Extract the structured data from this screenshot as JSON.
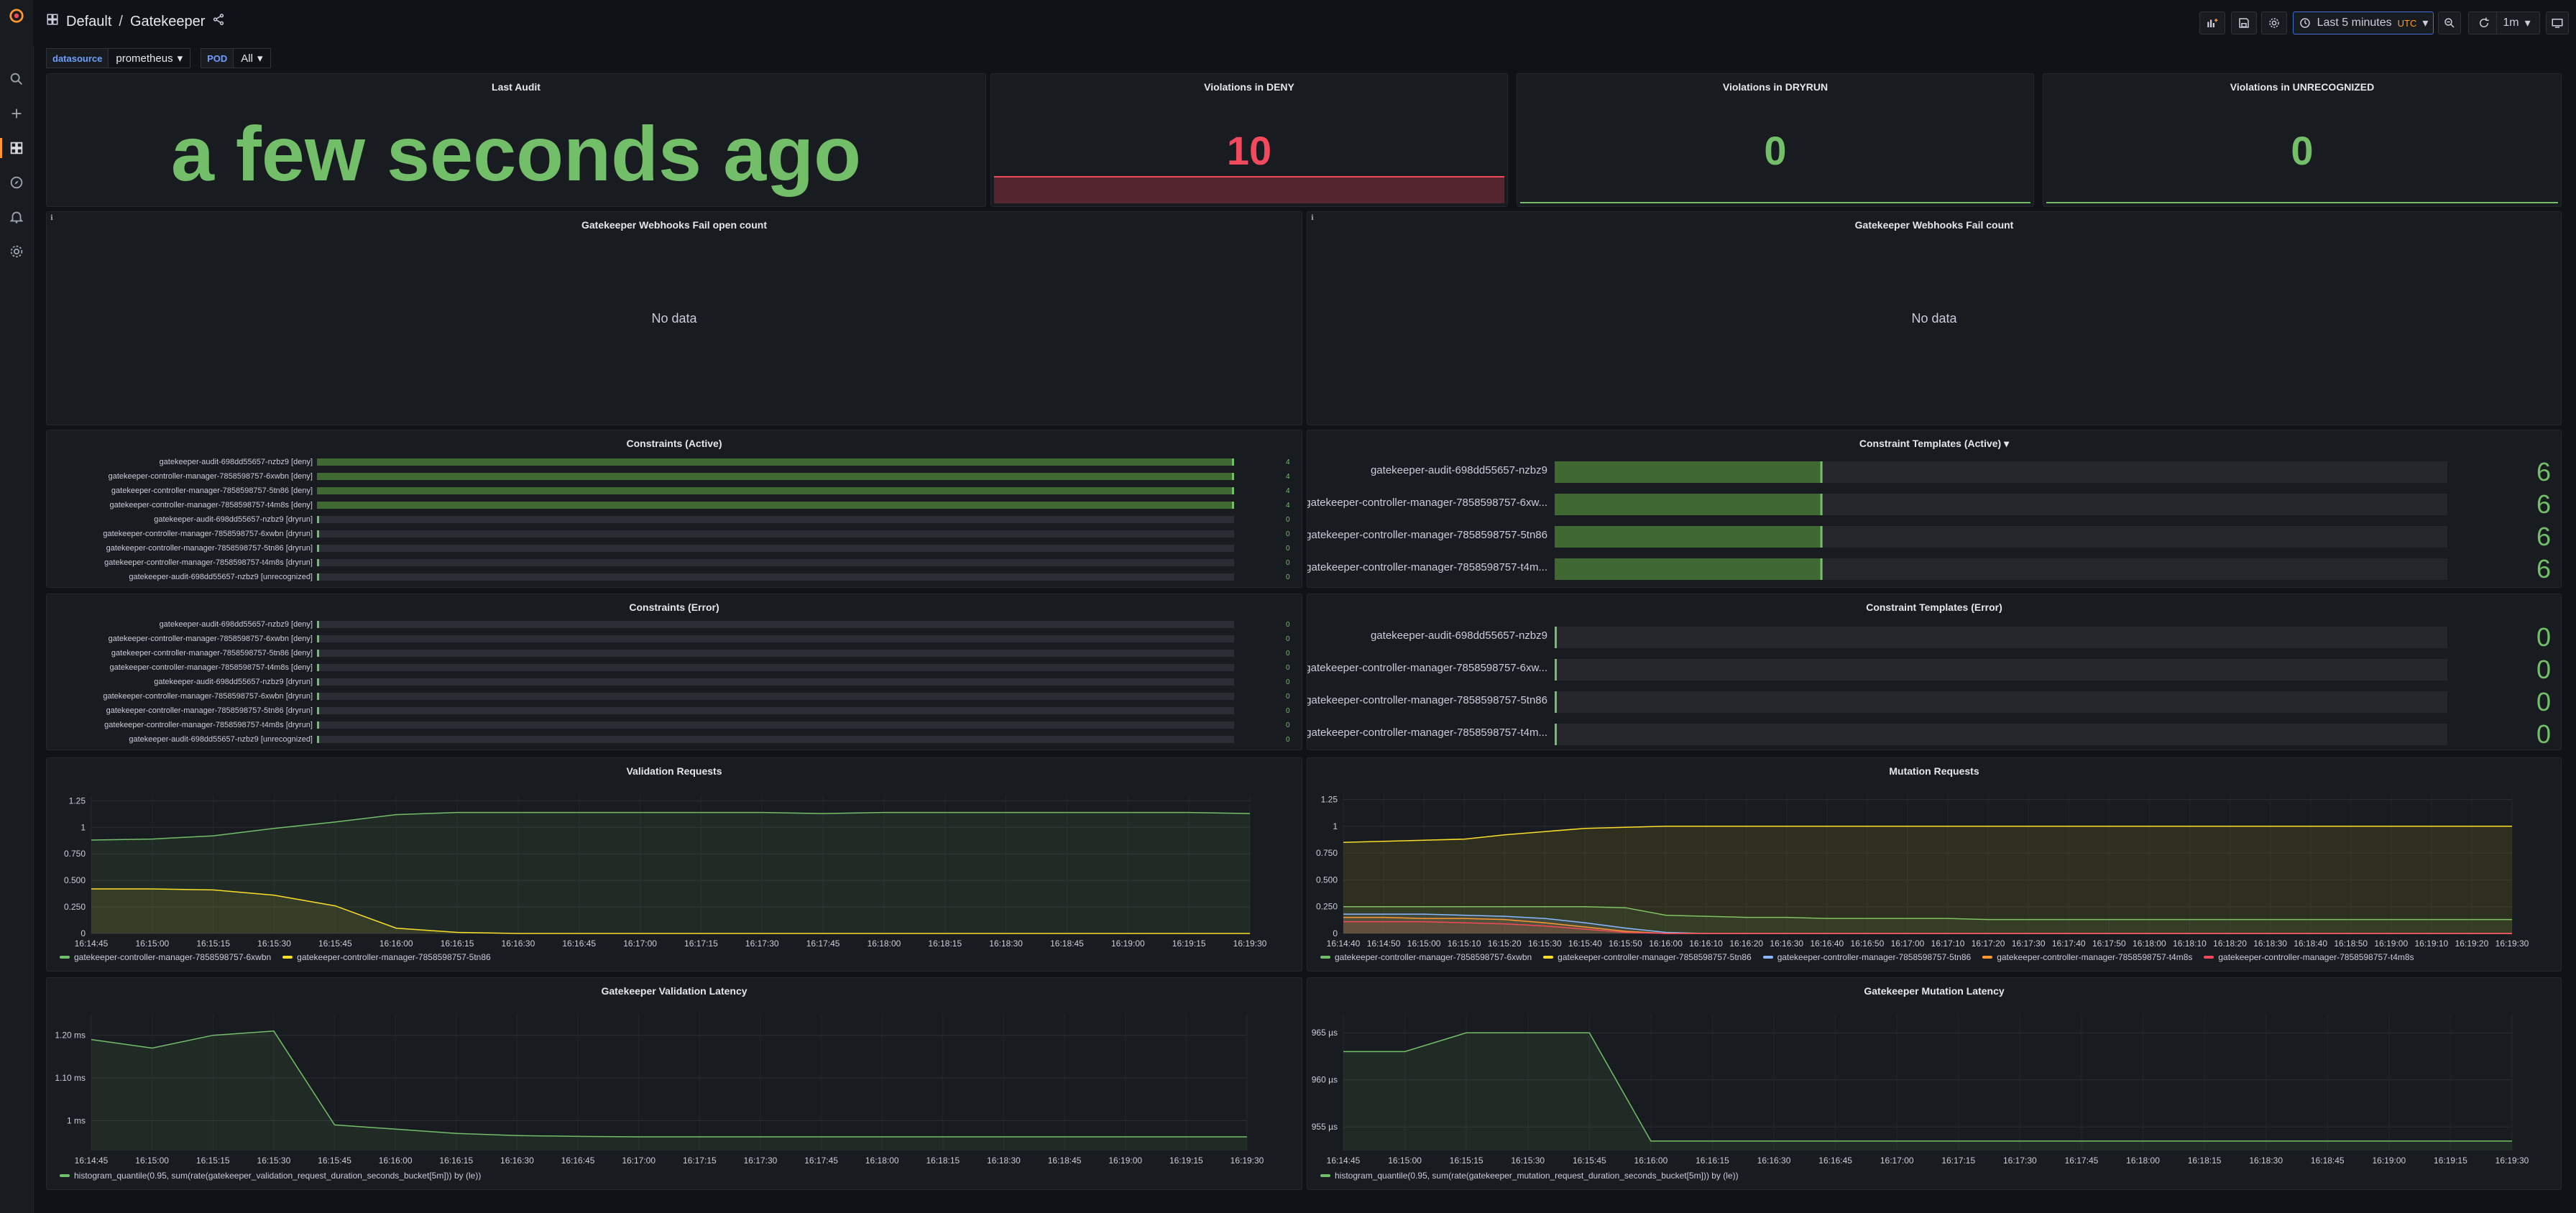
{
  "app": {
    "folder": "Default",
    "title": "Gatekeeper"
  },
  "toolbar": {
    "time_range": "Last 5 minutes",
    "timezone": "UTC",
    "refresh_interval": "1m"
  },
  "variables": [
    {
      "label": "datasource",
      "value": "prometheus"
    },
    {
      "label": "POD",
      "value": "All"
    }
  ],
  "colors": {
    "green": "#73bf69",
    "red": "#f2495c",
    "yellow": "#fade2a",
    "blue": "#8ab8ff",
    "orange": "#ff9830",
    "panel": "#181b1f",
    "text": "#ccccdc",
    "accent": "#ff9830"
  },
  "panels": {
    "last_audit": {
      "title": "Last Audit",
      "value": "a few seconds ago"
    },
    "deny": {
      "title": "Violations in DENY",
      "value": "10",
      "level": 0.9
    },
    "dryrun": {
      "title": "Violations in DRYRUN",
      "value": "0"
    },
    "unrecognized": {
      "title": "Violations in UNRECOGNIZED",
      "value": "0"
    },
    "webhook_failopen": {
      "title": "Gatekeeper Webhooks Fail open count",
      "nodata": "No data"
    },
    "webhook_fail": {
      "title": "Gatekeeper Webhooks Fail count",
      "nodata": "No data"
    },
    "constraints_active": {
      "title": "Constraints (Active)"
    },
    "templates_active": {
      "title": "Constraint Templates (Active)"
    },
    "constraints_error": {
      "title": "Constraints (Error)"
    },
    "templates_error": {
      "title": "Constraint Templates (Error)"
    },
    "validation": {
      "title": "Validation Requests"
    },
    "mutation": {
      "title": "Mutation Requests"
    },
    "val_latency": {
      "title": "Gatekeeper Validation Latency"
    },
    "mut_latency": {
      "title": "Gatekeeper Mutation Latency"
    }
  },
  "chart_data": [
    {
      "id": "constraints_active",
      "type": "bar",
      "orientation": "horizontal",
      "max": 4,
      "categories": [
        "gatekeeper-audit-698dd55657-nzbz9 [deny]",
        "gatekeeper-controller-manager-7858598757-6xwbn [deny]",
        "gatekeeper-controller-manager-7858598757-5tn86 [deny]",
        "gatekeeper-controller-manager-7858598757-t4m8s [deny]",
        "gatekeeper-audit-698dd55657-nzbz9 [dryrun]",
        "gatekeeper-controller-manager-7858598757-6xwbn [dryrun]",
        "gatekeeper-controller-manager-7858598757-5tn86 [dryrun]",
        "gatekeeper-controller-manager-7858598757-t4m8s [dryrun]",
        "gatekeeper-audit-698dd55657-nzbz9 [unrecognized]"
      ],
      "values": [
        4,
        4,
        4,
        4,
        0,
        0,
        0,
        0,
        0
      ]
    },
    {
      "id": "templates_active",
      "type": "bar",
      "orientation": "horizontal",
      "max": 20,
      "categories": [
        "gatekeeper-audit-698dd55657-nzbz9",
        "gatekeeper-controller-manager-7858598757-6xw...",
        "gatekeeper-controller-manager-7858598757-5tn86",
        "gatekeeper-controller-manager-7858598757-t4m..."
      ],
      "values": [
        6,
        6,
        6,
        6
      ]
    },
    {
      "id": "constraints_error",
      "type": "bar",
      "orientation": "horizontal",
      "max": 4,
      "categories": [
        "gatekeeper-audit-698dd55657-nzbz9 [deny]",
        "gatekeeper-controller-manager-7858598757-6xwbn [deny]",
        "gatekeeper-controller-manager-7858598757-5tn86 [deny]",
        "gatekeeper-controller-manager-7858598757-t4m8s [deny]",
        "gatekeeper-audit-698dd55657-nzbz9 [dryrun]",
        "gatekeeper-controller-manager-7858598757-6xwbn [dryrun]",
        "gatekeeper-controller-manager-7858598757-5tn86 [dryrun]",
        "gatekeeper-controller-manager-7858598757-t4m8s [dryrun]",
        "gatekeeper-audit-698dd55657-nzbz9 [unrecognized]"
      ],
      "values": [
        0,
        0,
        0,
        0,
        0,
        0,
        0,
        0,
        0
      ]
    },
    {
      "id": "templates_error",
      "type": "bar",
      "orientation": "horizontal",
      "max": 20,
      "categories": [
        "gatekeeper-audit-698dd55657-nzbz9",
        "gatekeeper-controller-manager-7858598757-6xw...",
        "gatekeeper-controller-manager-7858598757-5tn86",
        "gatekeeper-controller-manager-7858598757-t4m..."
      ],
      "values": [
        0,
        0,
        0,
        0
      ]
    },
    {
      "id": "validation",
      "type": "area",
      "x": [
        "16:14:45",
        "16:15:00",
        "16:15:15",
        "16:15:30",
        "16:15:45",
        "16:16:00",
        "16:16:15",
        "16:16:30",
        "16:16:45",
        "16:17:00",
        "16:17:15",
        "16:17:30",
        "16:17:45",
        "16:18:00",
        "16:18:15",
        "16:18:30",
        "16:18:45",
        "16:19:00",
        "16:19:15",
        "16:19:30"
      ],
      "yticks": [
        "0",
        "0.250",
        "0.500",
        "0.750",
        "1",
        "1.25"
      ],
      "ylim": [
        0,
        1.3
      ],
      "series": [
        {
          "name": "gatekeeper-controller-manager-7858598757-6xwbn",
          "color": "#73bf69",
          "values": [
            0.88,
            0.89,
            0.92,
            0.99,
            1.05,
            1.12,
            1.14,
            1.14,
            1.14,
            1.14,
            1.14,
            1.14,
            1.13,
            1.14,
            1.14,
            1.14,
            1.14,
            1.14,
            1.14,
            1.13
          ]
        },
        {
          "name": "gatekeeper-controller-manager-7858598757-5tn86",
          "color": "#fade2a",
          "values": [
            0.42,
            0.42,
            0.41,
            0.36,
            0.26,
            0.05,
            0.01,
            0.0,
            0.0,
            0.0,
            0.0,
            0.0,
            0.0,
            0.0,
            0.0,
            0.0,
            0.0,
            0.0,
            0.0,
            0.0
          ]
        }
      ]
    },
    {
      "id": "mutation",
      "type": "area",
      "x": [
        "16:14:40",
        "16:14:50",
        "16:15:00",
        "16:15:10",
        "16:15:20",
        "16:15:30",
        "16:15:40",
        "16:15:50",
        "16:16:00",
        "16:16:10",
        "16:16:20",
        "16:16:30",
        "16:16:40",
        "16:16:50",
        "16:17:00",
        "16:17:10",
        "16:17:20",
        "16:17:30",
        "16:17:40",
        "16:17:50",
        "16:18:00",
        "16:18:10",
        "16:18:20",
        "16:18:30",
        "16:18:40",
        "16:18:50",
        "16:19:00",
        "16:19:10",
        "16:19:20",
        "16:19:30"
      ],
      "yticks": [
        "0",
        "0.250",
        "0.500",
        "0.750",
        "1",
        "1.25"
      ],
      "ylim": [
        0,
        1.3
      ],
      "series": [
        {
          "name": "gatekeeper-controller-manager-7858598757-6xwbn",
          "color": "#73bf69",
          "values": [
            0.25,
            0.25,
            0.25,
            0.25,
            0.25,
            0.25,
            0.25,
            0.24,
            0.17,
            0.16,
            0.15,
            0.15,
            0.14,
            0.14,
            0.14,
            0.14,
            0.13,
            0.13,
            0.13,
            0.13,
            0.13,
            0.13,
            0.13,
            0.13,
            0.13,
            0.13,
            0.13,
            0.13,
            0.13,
            0.13
          ]
        },
        {
          "name": "gatekeeper-controller-manager-7858598757-5tn86",
          "color": "#fade2a",
          "values": [
            0.85,
            0.86,
            0.87,
            0.88,
            0.92,
            0.95,
            0.98,
            0.99,
            1.0,
            1.0,
            1.0,
            1.0,
            1.0,
            1.0,
            1.0,
            1.0,
            1.0,
            1.0,
            1.0,
            1.0,
            1.0,
            1.0,
            1.0,
            1.0,
            1.0,
            1.0,
            1.0,
            1.0,
            1.0,
            1.0
          ]
        },
        {
          "name": "gatekeeper-controller-manager-7858598757-5tn86",
          "color": "#8ab8ff",
          "values": [
            0.18,
            0.18,
            0.18,
            0.17,
            0.16,
            0.14,
            0.1,
            0.05,
            0.01,
            0,
            0,
            0,
            0,
            0,
            0,
            0,
            0,
            0,
            0,
            0,
            0,
            0,
            0,
            0,
            0,
            0,
            0,
            0,
            0,
            0
          ]
        },
        {
          "name": "gatekeeper-controller-manager-7858598757-t4m8s",
          "color": "#ff9830",
          "values": [
            0.15,
            0.15,
            0.14,
            0.14,
            0.13,
            0.1,
            0.06,
            0.02,
            0,
            0,
            0,
            0,
            0,
            0,
            0,
            0,
            0,
            0,
            0,
            0,
            0,
            0,
            0,
            0,
            0,
            0,
            0,
            0,
            0,
            0
          ]
        },
        {
          "name": "gatekeeper-controller-manager-7858598757-t4m8s",
          "color": "#f2495c",
          "values": [
            0.11,
            0.11,
            0.11,
            0.1,
            0.09,
            0.07,
            0.04,
            0.01,
            0,
            0,
            0,
            0,
            0,
            0,
            0,
            0,
            0,
            0,
            0,
            0,
            0,
            0,
            0,
            0,
            0,
            0,
            0,
            0,
            0,
            0
          ]
        }
      ]
    },
    {
      "id": "val_latency",
      "type": "area",
      "x": [
        "16:14:45",
        "16:15:00",
        "16:15:15",
        "16:15:30",
        "16:15:45",
        "16:16:00",
        "16:16:15",
        "16:16:30",
        "16:16:45",
        "16:17:00",
        "16:17:15",
        "16:17:30",
        "16:17:45",
        "16:18:00",
        "16:18:15",
        "16:18:30",
        "16:18:45",
        "16:19:00",
        "16:19:15",
        "16:19:30"
      ],
      "yticks": [
        "1 ms",
        "1.10 ms",
        "1.20 ms"
      ],
      "ytick_values": [
        1.0,
        1.1,
        1.2
      ],
      "ylim": [
        0.93,
        1.25
      ],
      "series": [
        {
          "name": "histogram_quantile(0.95, sum(rate(gatekeeper_validation_request_duration_seconds_bucket[5m])) by (le))",
          "color": "#73bf69",
          "values": [
            1.19,
            1.17,
            1.2,
            1.21,
            0.99,
            0.98,
            0.97,
            0.965,
            0.963,
            0.962,
            0.962,
            0.962,
            0.962,
            0.962,
            0.962,
            0.962,
            0.962,
            0.962,
            0.962,
            0.962
          ]
        }
      ]
    },
    {
      "id": "mut_latency",
      "type": "area",
      "x": [
        "16:14:45",
        "16:15:00",
        "16:15:15",
        "16:15:30",
        "16:15:45",
        "16:16:00",
        "16:16:15",
        "16:16:30",
        "16:16:45",
        "16:17:00",
        "16:17:15",
        "16:17:30",
        "16:17:45",
        "16:18:00",
        "16:18:15",
        "16:18:30",
        "16:18:45",
        "16:19:00",
        "16:19:15",
        "16:19:30"
      ],
      "yticks": [
        "955 µs",
        "960 µs",
        "965 µs"
      ],
      "ytick_values": [
        955,
        960,
        965
      ],
      "ylim": [
        952.5,
        967
      ],
      "series": [
        {
          "name": "histogram_quantile(0.95, sum(rate(gatekeeper_mutation_request_duration_seconds_bucket[5m])) by (le))",
          "color": "#73bf69",
          "values": [
            963,
            963,
            965,
            965,
            965,
            953.5,
            953.5,
            953.5,
            953.5,
            953.5,
            953.5,
            953.5,
            953.5,
            953.5,
            953.5,
            953.5,
            953.5,
            953.5,
            953.5,
            953.5
          ]
        }
      ]
    }
  ]
}
